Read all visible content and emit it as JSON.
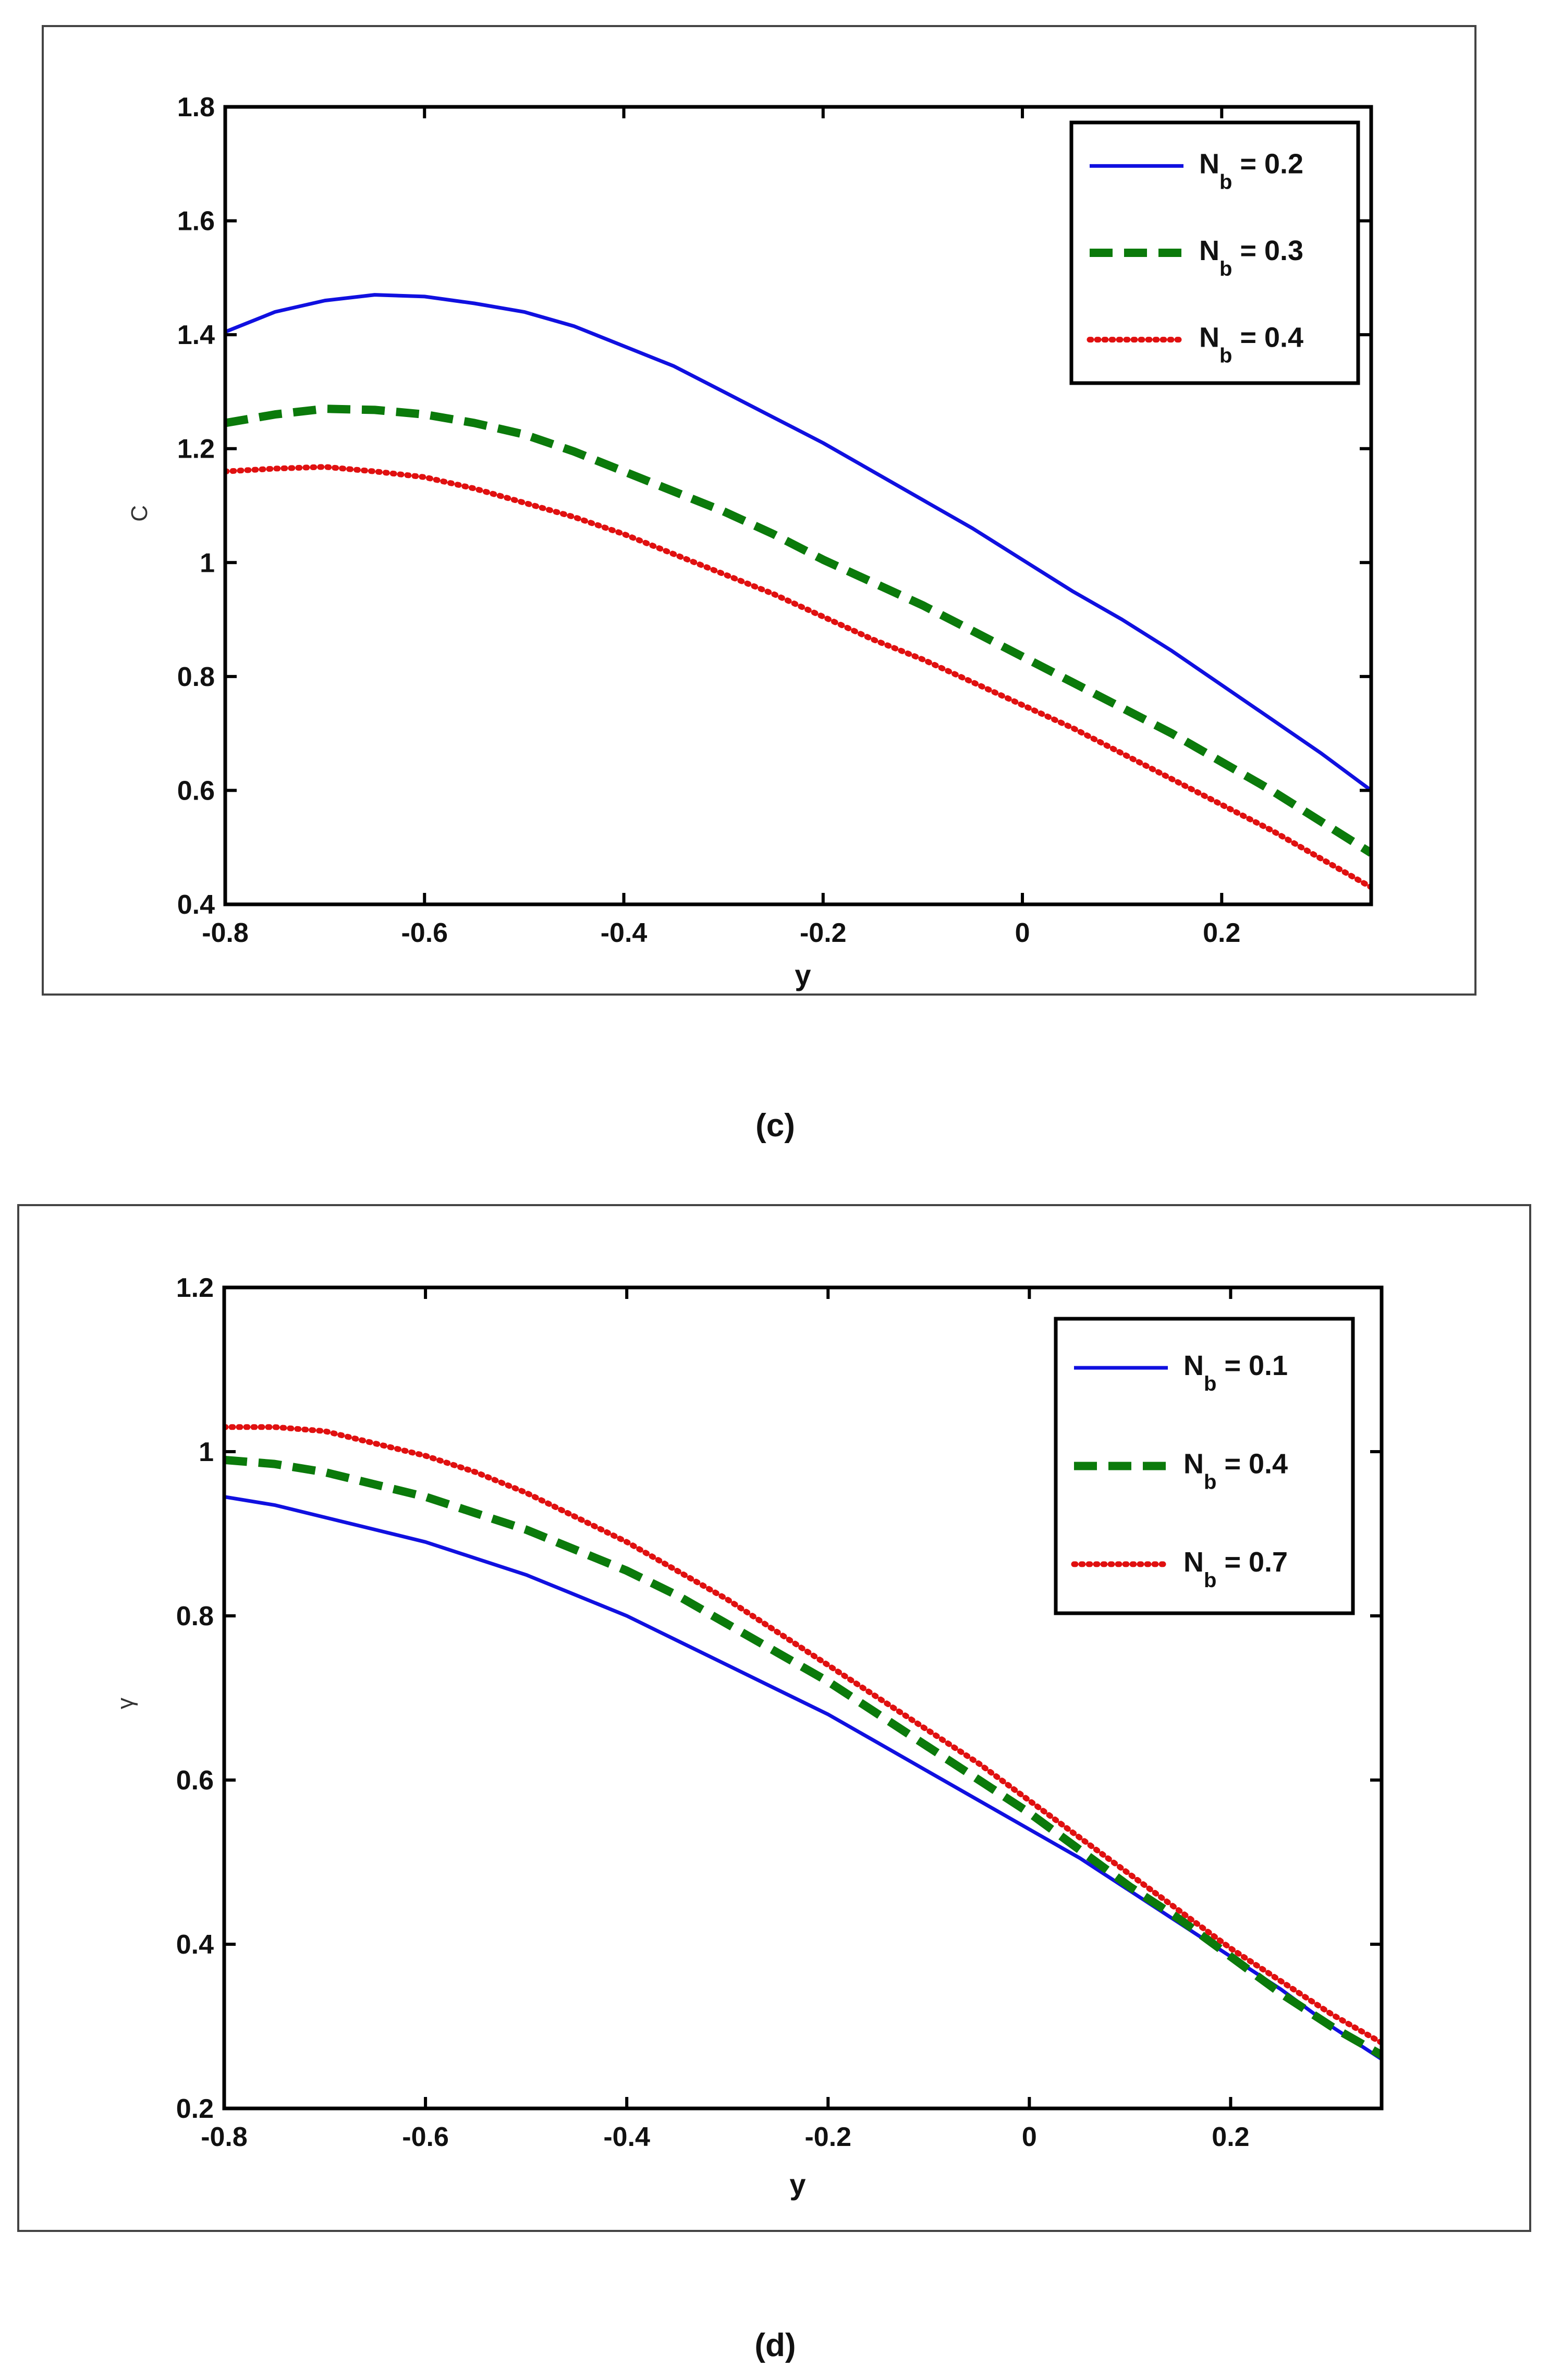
{
  "chart_data": [
    {
      "type": "line",
      "panel_label": "(c)",
      "title": "",
      "xlabel": "y",
      "ylabel": "C",
      "xlim": [
        -0.8,
        0.35
      ],
      "ylim": [
        0.4,
        1.8
      ],
      "xticks": [
        -0.8,
        -0.6,
        -0.4,
        -0.2,
        0,
        0.2
      ],
      "xtick_labels": [
        "-0.8",
        "-0.6",
        "-0.4",
        "-0.2",
        "0",
        "0.2"
      ],
      "yticks": [
        0.4,
        0.6,
        0.8,
        1,
        1.2,
        1.4,
        1.6,
        1.8
      ],
      "ytick_labels": [
        "0.4",
        "0.6",
        "0.8",
        "1",
        "1.2",
        "1.4",
        "1.6",
        "1.8"
      ],
      "legend_position": "top-right",
      "series": [
        {
          "name": "N_b = 0.2",
          "legend_main": "N",
          "legend_sub": "b",
          "legend_value": " = 0.2",
          "color": "#1010e0",
          "style": "solid",
          "x": [
            -0.8,
            -0.75,
            -0.7,
            -0.65,
            -0.6,
            -0.55,
            -0.5,
            -0.45,
            -0.4,
            -0.35,
            -0.3,
            -0.25,
            -0.2,
            -0.15,
            -0.1,
            -0.05,
            0,
            0.05,
            0.1,
            0.15,
            0.2,
            0.25,
            0.3,
            0.35
          ],
          "y": [
            1.405,
            1.44,
            1.46,
            1.47,
            1.467,
            1.455,
            1.44,
            1.415,
            1.38,
            1.345,
            1.3,
            1.255,
            1.21,
            1.16,
            1.11,
            1.06,
            1.005,
            0.95,
            0.9,
            0.845,
            0.785,
            0.725,
            0.665,
            0.6
          ]
        },
        {
          "name": "N_b = 0.3",
          "legend_main": "N",
          "legend_sub": "b",
          "legend_value": " = 0.3",
          "color": "#0b7a0b",
          "style": "dashed",
          "x": [
            -0.8,
            -0.75,
            -0.7,
            -0.65,
            -0.6,
            -0.55,
            -0.5,
            -0.45,
            -0.4,
            -0.35,
            -0.3,
            -0.25,
            -0.2,
            -0.15,
            -0.1,
            -0.05,
            0,
            0.05,
            0.1,
            0.15,
            0.2,
            0.25,
            0.3,
            0.35
          ],
          "y": [
            1.245,
            1.26,
            1.27,
            1.268,
            1.26,
            1.245,
            1.225,
            1.195,
            1.16,
            1.125,
            1.09,
            1.05,
            1.005,
            0.965,
            0.925,
            0.88,
            0.835,
            0.79,
            0.745,
            0.7,
            0.65,
            0.6,
            0.545,
            0.49
          ]
        },
        {
          "name": "N_b = 0.4",
          "legend_main": "N",
          "legend_sub": "b",
          "legend_value": " = 0.4",
          "color": "#e01010",
          "style": "dotted",
          "x": [
            -0.8,
            -0.75,
            -0.7,
            -0.65,
            -0.6,
            -0.55,
            -0.5,
            -0.45,
            -0.4,
            -0.35,
            -0.3,
            -0.25,
            -0.2,
            -0.15,
            -0.1,
            -0.05,
            0,
            0.05,
            0.1,
            0.15,
            0.2,
            0.25,
            0.3,
            0.35
          ],
          "y": [
            1.16,
            1.165,
            1.168,
            1.16,
            1.15,
            1.13,
            1.105,
            1.08,
            1.05,
            1.015,
            0.98,
            0.945,
            0.905,
            0.865,
            0.83,
            0.79,
            0.75,
            0.71,
            0.665,
            0.62,
            0.575,
            0.53,
            0.48,
            0.43
          ]
        }
      ]
    },
    {
      "type": "line",
      "panel_label": "(d)",
      "title": "",
      "xlabel": "y",
      "ylabel": "γ",
      "xlim": [
        -0.8,
        0.35
      ],
      "ylim": [
        0.2,
        1.2
      ],
      "xticks": [
        -0.8,
        -0.6,
        -0.4,
        -0.2,
        0,
        0.2
      ],
      "xtick_labels": [
        "-0.8",
        "-0.6",
        "-0.4",
        "-0.2",
        "0",
        "0.2"
      ],
      "yticks": [
        0.2,
        0.4,
        0.6,
        0.8,
        1,
        1.2
      ],
      "ytick_labels": [
        "0.2",
        "0.4",
        "0.6",
        "0.8",
        "1",
        "1.2"
      ],
      "legend_position": "top-right",
      "series": [
        {
          "name": "N_b = 0.1",
          "legend_main": "N",
          "legend_sub": "b",
          "legend_value": " = 0.1",
          "color": "#1010e0",
          "style": "solid",
          "x": [
            -0.8,
            -0.75,
            -0.7,
            -0.65,
            -0.6,
            -0.55,
            -0.5,
            -0.45,
            -0.4,
            -0.35,
            -0.3,
            -0.25,
            -0.2,
            -0.15,
            -0.1,
            -0.05,
            0,
            0.05,
            0.1,
            0.15,
            0.2,
            0.25,
            0.3,
            0.35
          ],
          "y": [
            0.945,
            0.935,
            0.92,
            0.905,
            0.89,
            0.87,
            0.85,
            0.825,
            0.8,
            0.77,
            0.74,
            0.71,
            0.68,
            0.645,
            0.61,
            0.575,
            0.54,
            0.505,
            0.465,
            0.425,
            0.385,
            0.345,
            0.3,
            0.26
          ]
        },
        {
          "name": "N_b = 0.4",
          "legend_main": "N",
          "legend_sub": "b",
          "legend_value": " = 0.4",
          "color": "#0b7a0b",
          "style": "dashed",
          "x": [
            -0.8,
            -0.75,
            -0.7,
            -0.65,
            -0.6,
            -0.55,
            -0.5,
            -0.45,
            -0.4,
            -0.35,
            -0.3,
            -0.25,
            -0.2,
            -0.15,
            -0.1,
            -0.05,
            0,
            0.05,
            0.1,
            0.15,
            0.2,
            0.25,
            0.3,
            0.35
          ],
          "y": [
            0.99,
            0.985,
            0.975,
            0.96,
            0.945,
            0.925,
            0.905,
            0.88,
            0.855,
            0.825,
            0.79,
            0.755,
            0.72,
            0.68,
            0.64,
            0.6,
            0.56,
            0.515,
            0.47,
            0.43,
            0.385,
            0.34,
            0.3,
            0.265
          ]
        },
        {
          "name": "N_b = 0.7",
          "legend_main": "N",
          "legend_sub": "b",
          "legend_value": " = 0.7",
          "color": "#e01010",
          "style": "dotted",
          "x": [
            -0.8,
            -0.75,
            -0.7,
            -0.65,
            -0.6,
            -0.55,
            -0.5,
            -0.45,
            -0.4,
            -0.35,
            -0.3,
            -0.25,
            -0.2,
            -0.15,
            -0.1,
            -0.05,
            0,
            0.05,
            0.1,
            0.15,
            0.2,
            0.25,
            0.3,
            0.35
          ],
          "y": [
            1.03,
            1.03,
            1.025,
            1.01,
            0.995,
            0.975,
            0.95,
            0.92,
            0.89,
            0.855,
            0.82,
            0.78,
            0.74,
            0.7,
            0.66,
            0.62,
            0.575,
            0.53,
            0.485,
            0.44,
            0.395,
            0.355,
            0.315,
            0.28
          ]
        }
      ]
    }
  ]
}
